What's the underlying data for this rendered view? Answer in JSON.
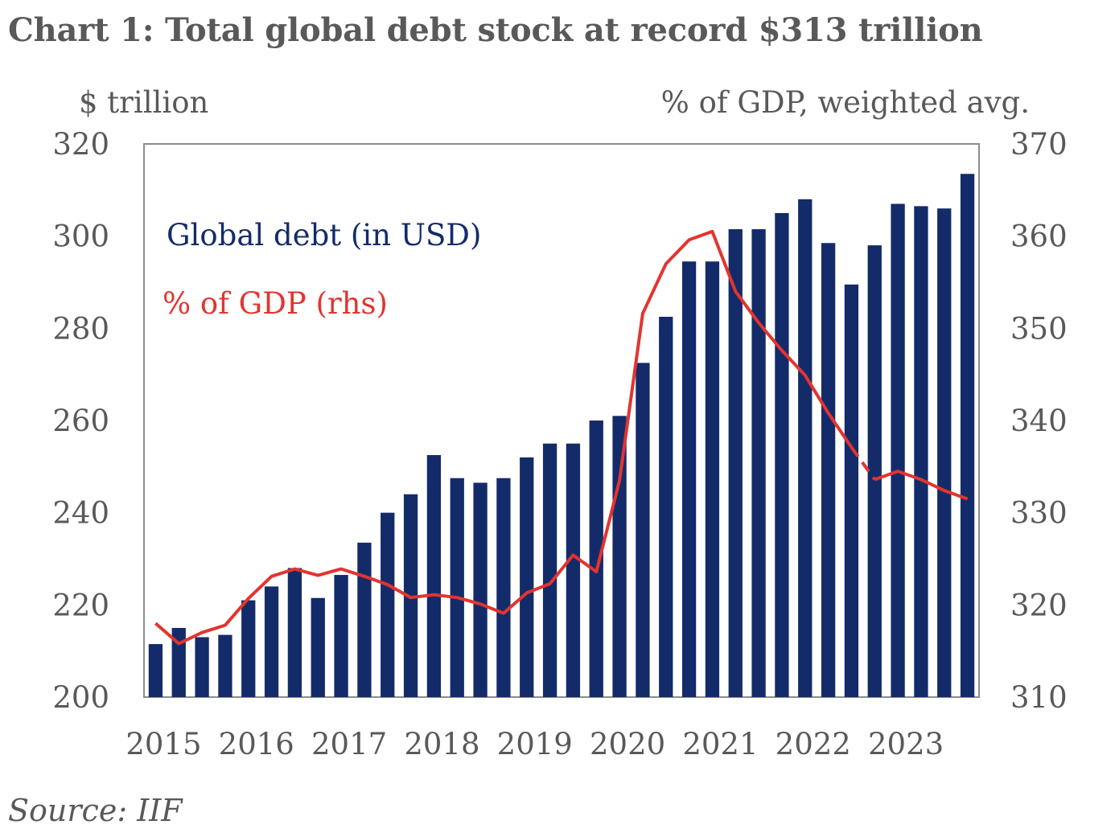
{
  "chart_data": {
    "type": "bar+line",
    "title": "Chart 1: Total global debt stock at record $313 trillion",
    "source": "Source: IIF",
    "y_left_label": "$ trillion",
    "y_right_label": "% of GDP, weighted avg.",
    "ylim_left": [
      200,
      320
    ],
    "ylim_right": [
      310,
      370
    ],
    "yticks_left": [
      "320",
      "300",
      "280",
      "260",
      "240",
      "220",
      "200"
    ],
    "yticks_right": [
      "370",
      "360",
      "350",
      "340",
      "330",
      "320",
      "310"
    ],
    "x_year_labels": [
      "2015",
      "2016",
      "2017",
      "2018",
      "2019",
      "2020",
      "2021",
      "2022",
      "2023"
    ],
    "x": [
      "2015Q1",
      "2015Q2",
      "2015Q3",
      "2015Q4",
      "2016Q1",
      "2016Q2",
      "2016Q3",
      "2016Q4",
      "2017Q1",
      "2017Q2",
      "2017Q3",
      "2017Q4",
      "2018Q1",
      "2018Q2",
      "2018Q3",
      "2018Q4",
      "2019Q1",
      "2019Q2",
      "2019Q3",
      "2019Q4",
      "2020Q1",
      "2020Q2",
      "2020Q3",
      "2020Q4",
      "2021Q1",
      "2021Q2",
      "2021Q3",
      "2021Q4",
      "2022Q1",
      "2022Q2",
      "2022Q3",
      "2022Q4",
      "2023Q1",
      "2023Q2",
      "2023Q3",
      "2023Q4"
    ],
    "grid": false,
    "legend_position": "top-left (inside)",
    "series": [
      {
        "name": "Global debt (in USD)",
        "type": "bar",
        "axis": "left",
        "color": "#142B6A",
        "values": [
          211.5,
          215,
          213,
          213.5,
          221,
          224,
          228,
          221.5,
          226.5,
          233.5,
          240,
          244,
          252.5,
          247.5,
          246.5,
          247.5,
          252,
          255,
          255,
          260,
          261,
          272.5,
          282.5,
          294.5,
          294.5,
          301.5,
          301.5,
          305,
          308,
          298.5,
          289.5,
          298,
          307,
          306.5,
          306,
          313.5
        ]
      },
      {
        "name": "% of GDP (rhs)",
        "type": "line",
        "axis": "right",
        "color": "#E3342F",
        "values": [
          318,
          315.8,
          317,
          317.8,
          320.7,
          323.1,
          323.9,
          323.2,
          323.9,
          323.1,
          322.2,
          320.8,
          321.1,
          320.8,
          320.1,
          319.1,
          321.3,
          322.3,
          325.4,
          323.6,
          333.5,
          351.6,
          357,
          359.6,
          360.5,
          354,
          350.6,
          347.6,
          344.9,
          340.8,
          337.1,
          333.6,
          334.5,
          333.6,
          332.4,
          331.5
        ],
        "dashed_segment": [
          "2022Q3",
          "2022Q4"
        ]
      }
    ]
  }
}
